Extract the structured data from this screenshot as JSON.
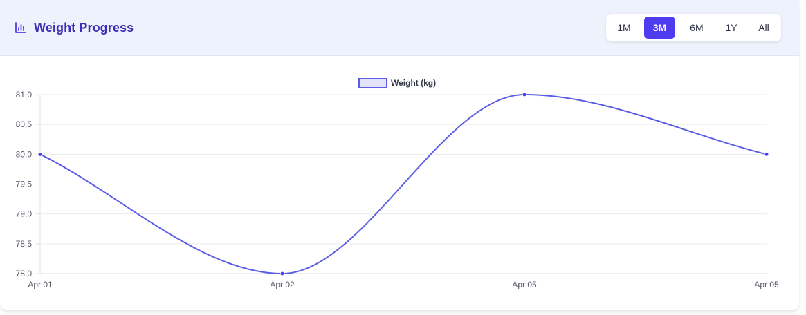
{
  "header": {
    "title": "Weight Progress",
    "icon": "bar-chart-icon"
  },
  "range_selector": {
    "options": [
      "1M",
      "3M",
      "6M",
      "1Y",
      "All"
    ],
    "selected": "3M"
  },
  "colors": {
    "accent": "#4f3cf0",
    "line": "#5b5ce6",
    "legend_fill": "#e3e3fb",
    "title": "#3b2fb5",
    "header_bg": "#eef2fd"
  },
  "chart_data": {
    "type": "line",
    "categories": [
      "Apr 01",
      "Apr 02",
      "Apr 05",
      "Apr 05"
    ],
    "series": [
      {
        "name": "Weight (kg)",
        "values": [
          80.0,
          78.0,
          81.0,
          80.0
        ]
      }
    ],
    "yticks": [
      "81,0",
      "80,5",
      "80,0",
      "79,5",
      "79,0",
      "78,5",
      "78,0"
    ],
    "ylim": [
      78.0,
      81.0
    ],
    "line_style": "smooth",
    "grid": true,
    "legend": "top-center"
  }
}
